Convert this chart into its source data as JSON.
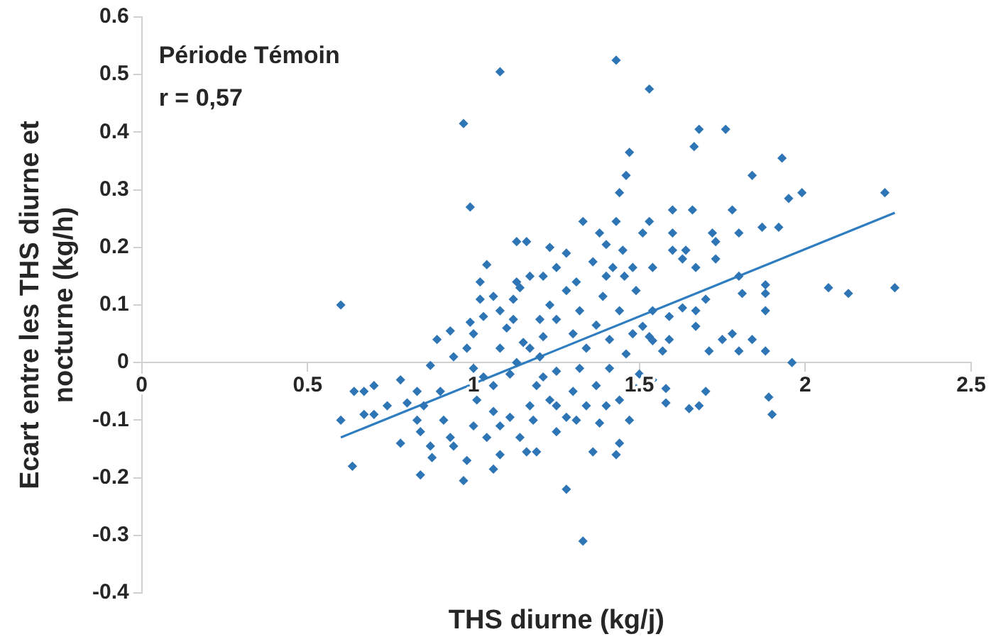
{
  "chart_data": {
    "type": "scatter",
    "xlabel": "THS diurne (kg/j)",
    "ylabel": "Ecart entre les THS diurne et nocturne (kg/h)",
    "annotations": [
      "Période Témoin",
      "r = 0,57"
    ],
    "xlim": [
      0,
      2.5
    ],
    "xticks": [
      0,
      0.5,
      1,
      1.5,
      2,
      2.5
    ],
    "ylim": [
      -0.4,
      0.6
    ],
    "yticks": [
      -0.4,
      -0.3,
      -0.2,
      -0.1,
      0,
      0.1,
      0.2,
      0.3,
      0.4,
      0.5,
      0.6
    ],
    "series": [
      {
        "color": "#2e75b6",
        "marker": "diamond",
        "x": [
          1.08,
          0.97,
          0.99,
          1.13,
          1.16,
          1.04,
          1.02,
          1.13,
          1.17,
          1.43,
          1.53,
          1.68,
          1.76,
          1.665,
          1.47,
          1.46,
          1.93,
          1.84,
          2.24,
          1.44,
          1.95,
          1.99,
          1.33,
          1.43,
          1.53,
          1.6,
          1.66,
          1.78,
          1.51,
          1.6,
          1.87,
          1.92,
          1.8,
          1.72,
          1.6,
          1.64,
          1.4,
          1.45,
          1.63,
          1.73,
          1.42,
          1.48,
          1.54,
          1.67,
          1.73,
          1.8,
          1.88,
          2.07,
          2.13,
          2.27,
          1.88,
          1.88,
          1.81,
          1.67,
          1.78,
          1.75,
          1.71,
          1.8,
          1.84,
          1.88,
          1.96,
          1.57,
          1.59,
          1.54,
          1.53,
          1.59,
          1.67,
          1.7,
          1.63,
          1.7,
          1.65,
          1.68,
          1.89,
          1.9,
          1.58,
          1.54,
          1.49,
          1.58,
          1.38,
          1.43,
          1.28,
          1.33,
          1.25,
          1.28,
          1.44,
          1.5,
          0.6,
          0.6,
          0.635,
          0.64,
          0.67,
          0.7,
          0.7,
          0.67,
          0.74,
          0.78,
          0.78,
          0.84,
          0.84,
          0.85,
          0.8,
          0.83,
          0.87,
          0.87,
          0.875,
          0.83,
          0.9,
          0.91,
          0.93,
          0.94,
          0.97,
          0.98,
          0.94,
          0.89,
          0.93,
          0.99,
          1.0,
          0.98,
          1.02,
          1.06,
          1.0,
          1.03,
          1.01,
          1.06,
          1.06,
          1.04,
          1.0,
          1.06,
          1.08,
          1.08,
          1.11,
          1.17,
          1.14,
          1.16,
          1.19,
          1.19,
          1.13,
          1.15,
          1.1,
          1.08,
          1.12,
          1.14,
          1.12,
          1.03,
          1.21,
          1.2,
          1.25,
          1.23,
          1.18,
          1.23,
          1.25,
          1.28,
          1.3,
          1.32,
          1.34,
          1.37,
          1.39,
          1.41,
          1.44,
          1.46,
          1.48,
          1.49,
          1.32,
          1.37,
          1.41,
          1.3,
          1.21,
          1.25,
          1.31,
          1.36,
          1.4,
          1.38,
          1.28,
          1.23,
          1.2,
          1.17,
          1.08,
          1.11,
          1.21,
          1.25,
          1.31,
          1.34,
          1.4,
          1.47,
          1.44,
          1.36,
          1.51,
          1.54,
          1.455
        ],
        "values": [
          0.505,
          0.415,
          0.27,
          0.21,
          0.21,
          0.17,
          0.14,
          0.14,
          0.15,
          0.525,
          0.475,
          0.405,
          0.405,
          0.375,
          0.365,
          0.325,
          0.355,
          0.325,
          0.295,
          0.295,
          0.285,
          0.295,
          0.245,
          0.245,
          0.245,
          0.265,
          0.265,
          0.265,
          0.225,
          0.225,
          0.235,
          0.235,
          0.225,
          0.225,
          0.195,
          0.195,
          0.205,
          0.195,
          0.18,
          0.18,
          0.165,
          0.165,
          0.165,
          0.165,
          0.21,
          0.15,
          0.135,
          0.13,
          0.12,
          0.13,
          0.12,
          0.09,
          0.12,
          0.063,
          0.05,
          0.04,
          0.02,
          0.02,
          0.04,
          0.02,
          0.0,
          0.02,
          0.04,
          0.09,
          0.045,
          0.08,
          0.09,
          0.11,
          0.095,
          -0.05,
          -0.08,
          -0.075,
          -0.06,
          -0.09,
          -0.07,
          -0.03,
          -0.045,
          -0.045,
          -0.105,
          -0.16,
          -0.22,
          -0.31,
          -0.12,
          -0.095,
          -0.065,
          -0.02,
          0.1,
          -0.1,
          -0.18,
          -0.05,
          -0.05,
          -0.04,
          -0.09,
          -0.09,
          -0.075,
          -0.03,
          -0.14,
          -0.195,
          -0.12,
          -0.075,
          -0.07,
          -0.05,
          -0.005,
          -0.145,
          -0.165,
          -0.1,
          -0.05,
          -0.1,
          -0.13,
          -0.145,
          -0.205,
          -0.17,
          0.01,
          0.04,
          0.055,
          0.07,
          0.05,
          0.025,
          0.11,
          0.115,
          -0.01,
          -0.025,
          -0.065,
          -0.04,
          -0.085,
          -0.13,
          -0.11,
          -0.185,
          -0.16,
          -0.11,
          -0.095,
          -0.075,
          -0.13,
          -0.155,
          -0.155,
          -0.04,
          0.0,
          0.035,
          0.06,
          0.09,
          0.075,
          0.13,
          0.11,
          0.08,
          0.045,
          0.01,
          -0.015,
          -0.065,
          -0.1,
          0.1,
          0.075,
          0.125,
          0.05,
          0.09,
          0.025,
          0.065,
          0.115,
          0.04,
          0.09,
          0.015,
          0.05,
          0.125,
          -0.01,
          -0.04,
          -0.01,
          -0.05,
          0.15,
          0.165,
          0.14,
          0.175,
          0.15,
          0.225,
          0.19,
          0.2,
          0.075,
          0.025,
          0.025,
          -0.02,
          -0.025,
          -0.075,
          -0.1,
          -0.075,
          -0.075,
          -0.1,
          -0.14,
          -0.155,
          0.063,
          0.038,
          0.15
        ]
      },
      {
        "type": "line",
        "color": "#2e7dc0",
        "marker": "none",
        "x": [
          0.6,
          2.27
        ],
        "values": [
          -0.13,
          0.26
        ]
      }
    ]
  }
}
